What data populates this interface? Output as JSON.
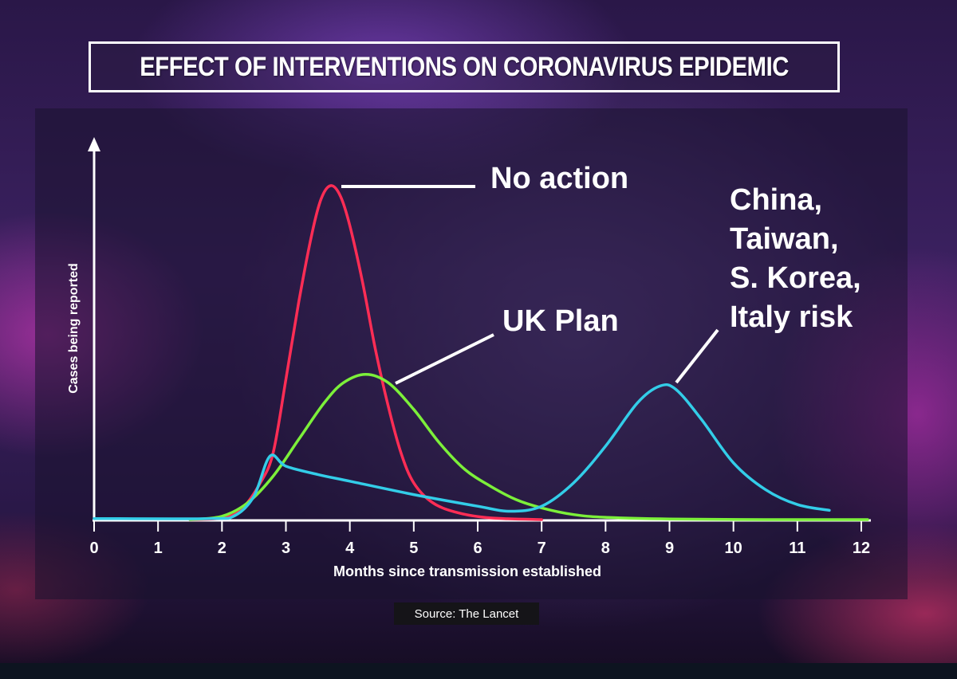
{
  "header": {
    "title": "EFFECT OF INTERVENTIONS ON CORONAVIRUS EPIDEMIC"
  },
  "source": "Source: The Lancet",
  "colors": {
    "no_action": "#ff2d55",
    "uk_plan": "#7cf03a",
    "asia_italy": "#33cde8",
    "text": "#ffffff"
  },
  "chart_data": {
    "type": "line",
    "title": "EFFECT OF INTERVENTIONS ON CORONAVIRUS EPIDEMIC",
    "xlabel": "Months since transmission established",
    "ylabel": "Cases being reported",
    "xlim": [
      0,
      12
    ],
    "ylim": [
      0,
      1
    ],
    "x_ticks": [
      "0",
      "1",
      "2",
      "3",
      "4",
      "5",
      "6",
      "7",
      "8",
      "9",
      "10",
      "11",
      "12"
    ],
    "grid": false,
    "series": [
      {
        "name": "No action",
        "color": "#ff2d55",
        "points": [
          [
            1.5,
            0.0
          ],
          [
            2.0,
            0.005
          ],
          [
            2.3,
            0.03
          ],
          [
            2.6,
            0.11
          ],
          [
            2.8,
            0.2
          ],
          [
            3.0,
            0.42
          ],
          [
            3.2,
            0.65
          ],
          [
            3.4,
            0.85
          ],
          [
            3.55,
            0.96
          ],
          [
            3.7,
            1.0
          ],
          [
            3.85,
            0.97
          ],
          [
            4.0,
            0.88
          ],
          [
            4.2,
            0.71
          ],
          [
            4.4,
            0.51
          ],
          [
            4.6,
            0.34
          ],
          [
            4.8,
            0.2
          ],
          [
            5.0,
            0.11
          ],
          [
            5.3,
            0.05
          ],
          [
            5.7,
            0.02
          ],
          [
            6.2,
            0.005
          ],
          [
            7.0,
            0.0
          ]
        ]
      },
      {
        "name": "UK Plan",
        "color": "#7cf03a",
        "points": [
          [
            1.5,
            0.0
          ],
          [
            2.0,
            0.01
          ],
          [
            2.4,
            0.05
          ],
          [
            2.8,
            0.13
          ],
          [
            3.2,
            0.24
          ],
          [
            3.6,
            0.35
          ],
          [
            3.9,
            0.41
          ],
          [
            4.25,
            0.435
          ],
          [
            4.6,
            0.41
          ],
          [
            5.0,
            0.33
          ],
          [
            5.4,
            0.23
          ],
          [
            5.8,
            0.15
          ],
          [
            6.2,
            0.1
          ],
          [
            6.6,
            0.06
          ],
          [
            7.0,
            0.035
          ],
          [
            7.5,
            0.015
          ],
          [
            8.0,
            0.007
          ],
          [
            9.0,
            0.002
          ],
          [
            10.5,
            0.0
          ],
          [
            12.1,
            0.0
          ]
        ]
      },
      {
        "name": "China, Taiwan, S. Korea, Italy risk",
        "color": "#33cde8",
        "points": [
          [
            0.0,
            0.003
          ],
          [
            1.8,
            0.003
          ],
          [
            2.2,
            0.012
          ],
          [
            2.5,
            0.07
          ],
          [
            2.75,
            0.19
          ],
          [
            3.0,
            0.16
          ],
          [
            3.5,
            0.135
          ],
          [
            4.0,
            0.115
          ],
          [
            5.0,
            0.075
          ],
          [
            6.0,
            0.04
          ],
          [
            6.5,
            0.025
          ],
          [
            7.0,
            0.04
          ],
          [
            7.5,
            0.11
          ],
          [
            8.0,
            0.22
          ],
          [
            8.5,
            0.35
          ],
          [
            8.85,
            0.4
          ],
          [
            9.1,
            0.39
          ],
          [
            9.5,
            0.3
          ],
          [
            10.0,
            0.17
          ],
          [
            10.5,
            0.09
          ],
          [
            11.0,
            0.045
          ],
          [
            11.5,
            0.028
          ]
        ]
      }
    ],
    "annotations": [
      {
        "series": 0,
        "lines": [
          "No action"
        ]
      },
      {
        "series": 1,
        "lines": [
          "UK Plan"
        ]
      },
      {
        "series": 2,
        "lines": [
          "China,",
          "Taiwan,",
          "S. Korea,",
          "Italy risk"
        ]
      }
    ]
  }
}
